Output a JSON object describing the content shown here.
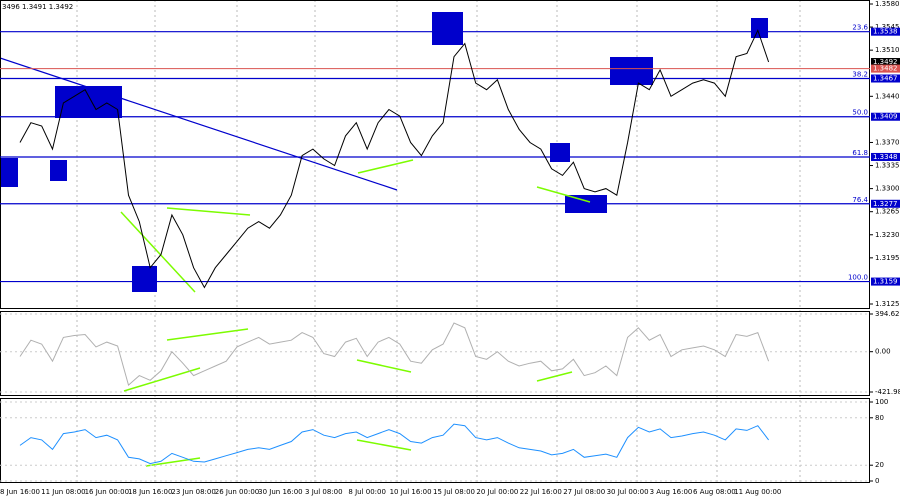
{
  "chart_data": [
    {
      "type": "line",
      "header": "3496 1.3491 1.3492",
      "categories": [
        "8 Jun 16:00",
        null,
        null,
        null,
        "11 Jun 08:00",
        null,
        null,
        null,
        "16 Jun 00:00",
        null,
        null,
        null,
        "18 Jun 16:00",
        null,
        null,
        null,
        "23 Jun 08:00",
        null,
        null,
        null,
        "26 Jun 00:00",
        null,
        null,
        null,
        "30 Jun 16:00",
        null,
        null,
        null,
        "3 Jul 08:00",
        null,
        null,
        null,
        "8 Jul 00:00",
        null,
        null,
        null,
        "10 Jul 16:00",
        null,
        null,
        null,
        "15 Jul 08:00",
        null,
        null,
        null,
        "20 Jul 00:00",
        null,
        null,
        null,
        "22 Jul 16:00",
        null,
        null,
        null,
        "27 Jul 08:00",
        null,
        null,
        null,
        "30 Jul 00:00",
        null,
        null,
        null,
        "3 Aug 16:00",
        null,
        null,
        null,
        "6 Aug 08:00",
        null,
        null,
        null,
        "11 Aug 00:00",
        null
      ],
      "series": [
        {
          "color": "#000000",
          "values": [
            1.337,
            1.34,
            1.3395,
            1.336,
            1.343,
            1.344,
            1.345,
            1.342,
            1.343,
            1.342,
            1.329,
            1.325,
            1.318,
            1.32,
            1.326,
            1.323,
            1.318,
            1.315,
            1.318,
            1.32,
            1.322,
            1.324,
            1.325,
            1.324,
            1.326,
            1.329,
            1.335,
            1.336,
            1.3345,
            1.3335,
            1.338,
            1.34,
            1.336,
            1.34,
            1.342,
            1.341,
            1.337,
            1.335,
            1.338,
            1.34,
            1.35,
            1.352,
            1.346,
            1.345,
            1.3465,
            1.342,
            1.339,
            1.337,
            1.336,
            1.333,
            1.332,
            1.334,
            1.33,
            1.3295,
            1.33,
            1.329,
            1.337,
            1.346,
            1.345,
            1.348,
            1.344,
            1.345,
            1.346,
            1.3465,
            1.346,
            1.344,
            1.35,
            1.3505,
            1.354,
            1.3492
          ]
        }
      ],
      "ylim": [
        1.3125,
        1.358
      ],
      "yticks": [
        {
          "value": 1.358,
          "label": "1.3580"
        },
        1.3545,
        {
          "value": 1.351,
          "label": "1.3510"
        },
        {
          "value": 1.344,
          "label": "1.3440"
        },
        {
          "value": 1.337,
          "label": "1.3370"
        },
        1.3335,
        {
          "value": 1.33,
          "label": "1.3300"
        },
        1.3265,
        {
          "value": 1.323,
          "label": "1.3230"
        },
        1.3195,
        1.3125
      ],
      "levels": [
        {
          "label": "23.6",
          "value": 1.3538
        },
        {
          "label": "38.2",
          "value": 1.3467
        },
        {
          "label": "50.0",
          "value": 1.3409
        },
        {
          "label": "61.8",
          "value": 1.3348
        },
        {
          "label": "76.4",
          "value": 1.3277
        },
        {
          "label": "100.0",
          "value": 1.3159
        }
      ],
      "level_color": "#0000cc",
      "ask": 1.3492,
      "bid": 1.3482,
      "bid_color": "#d9534f"
    },
    {
      "type": "line",
      "series": [
        {
          "color": "#b0b0b0",
          "values": [
            -50,
            120,
            80,
            -100,
            150,
            170,
            180,
            50,
            100,
            60,
            -350,
            -250,
            -300,
            -200,
            0,
            -120,
            -250,
            -200,
            -150,
            -100,
            50,
            100,
            150,
            80,
            100,
            120,
            200,
            150,
            -20,
            -50,
            100,
            140,
            -50,
            100,
            150,
            80,
            -100,
            -120,
            20,
            80,
            300,
            250,
            -50,
            -80,
            0,
            -100,
            -150,
            -120,
            -100,
            -200,
            -180,
            -80,
            -250,
            -220,
            -150,
            -250,
            150,
            250,
            120,
            180,
            -50,
            20,
            40,
            60,
            20,
            -50,
            180,
            160,
            200,
            -100
          ]
        }
      ],
      "ylim": [
        -421.987,
        394.6289
      ],
      "yticks": [
        394.6289,
        {
          "value": 0,
          "label": "0.00"
        },
        -421.987
      ]
    },
    {
      "type": "line",
      "series": [
        {
          "color": "#1e90ff",
          "values": [
            45,
            55,
            52,
            40,
            60,
            62,
            65,
            55,
            58,
            52,
            30,
            28,
            22,
            25,
            35,
            30,
            25,
            24,
            28,
            32,
            36,
            40,
            42,
            40,
            45,
            50,
            62,
            65,
            58,
            55,
            60,
            62,
            55,
            60,
            65,
            60,
            50,
            48,
            55,
            58,
            72,
            70,
            55,
            52,
            55,
            48,
            42,
            40,
            38,
            33,
            35,
            40,
            30,
            32,
            34,
            30,
            55,
            68,
            62,
            66,
            55,
            57,
            60,
            62,
            58,
            52,
            66,
            64,
            70,
            52
          ]
        }
      ],
      "ylim": [
        0,
        100
      ],
      "yticks": [
        100,
        80,
        20,
        0
      ]
    }
  ]
}
